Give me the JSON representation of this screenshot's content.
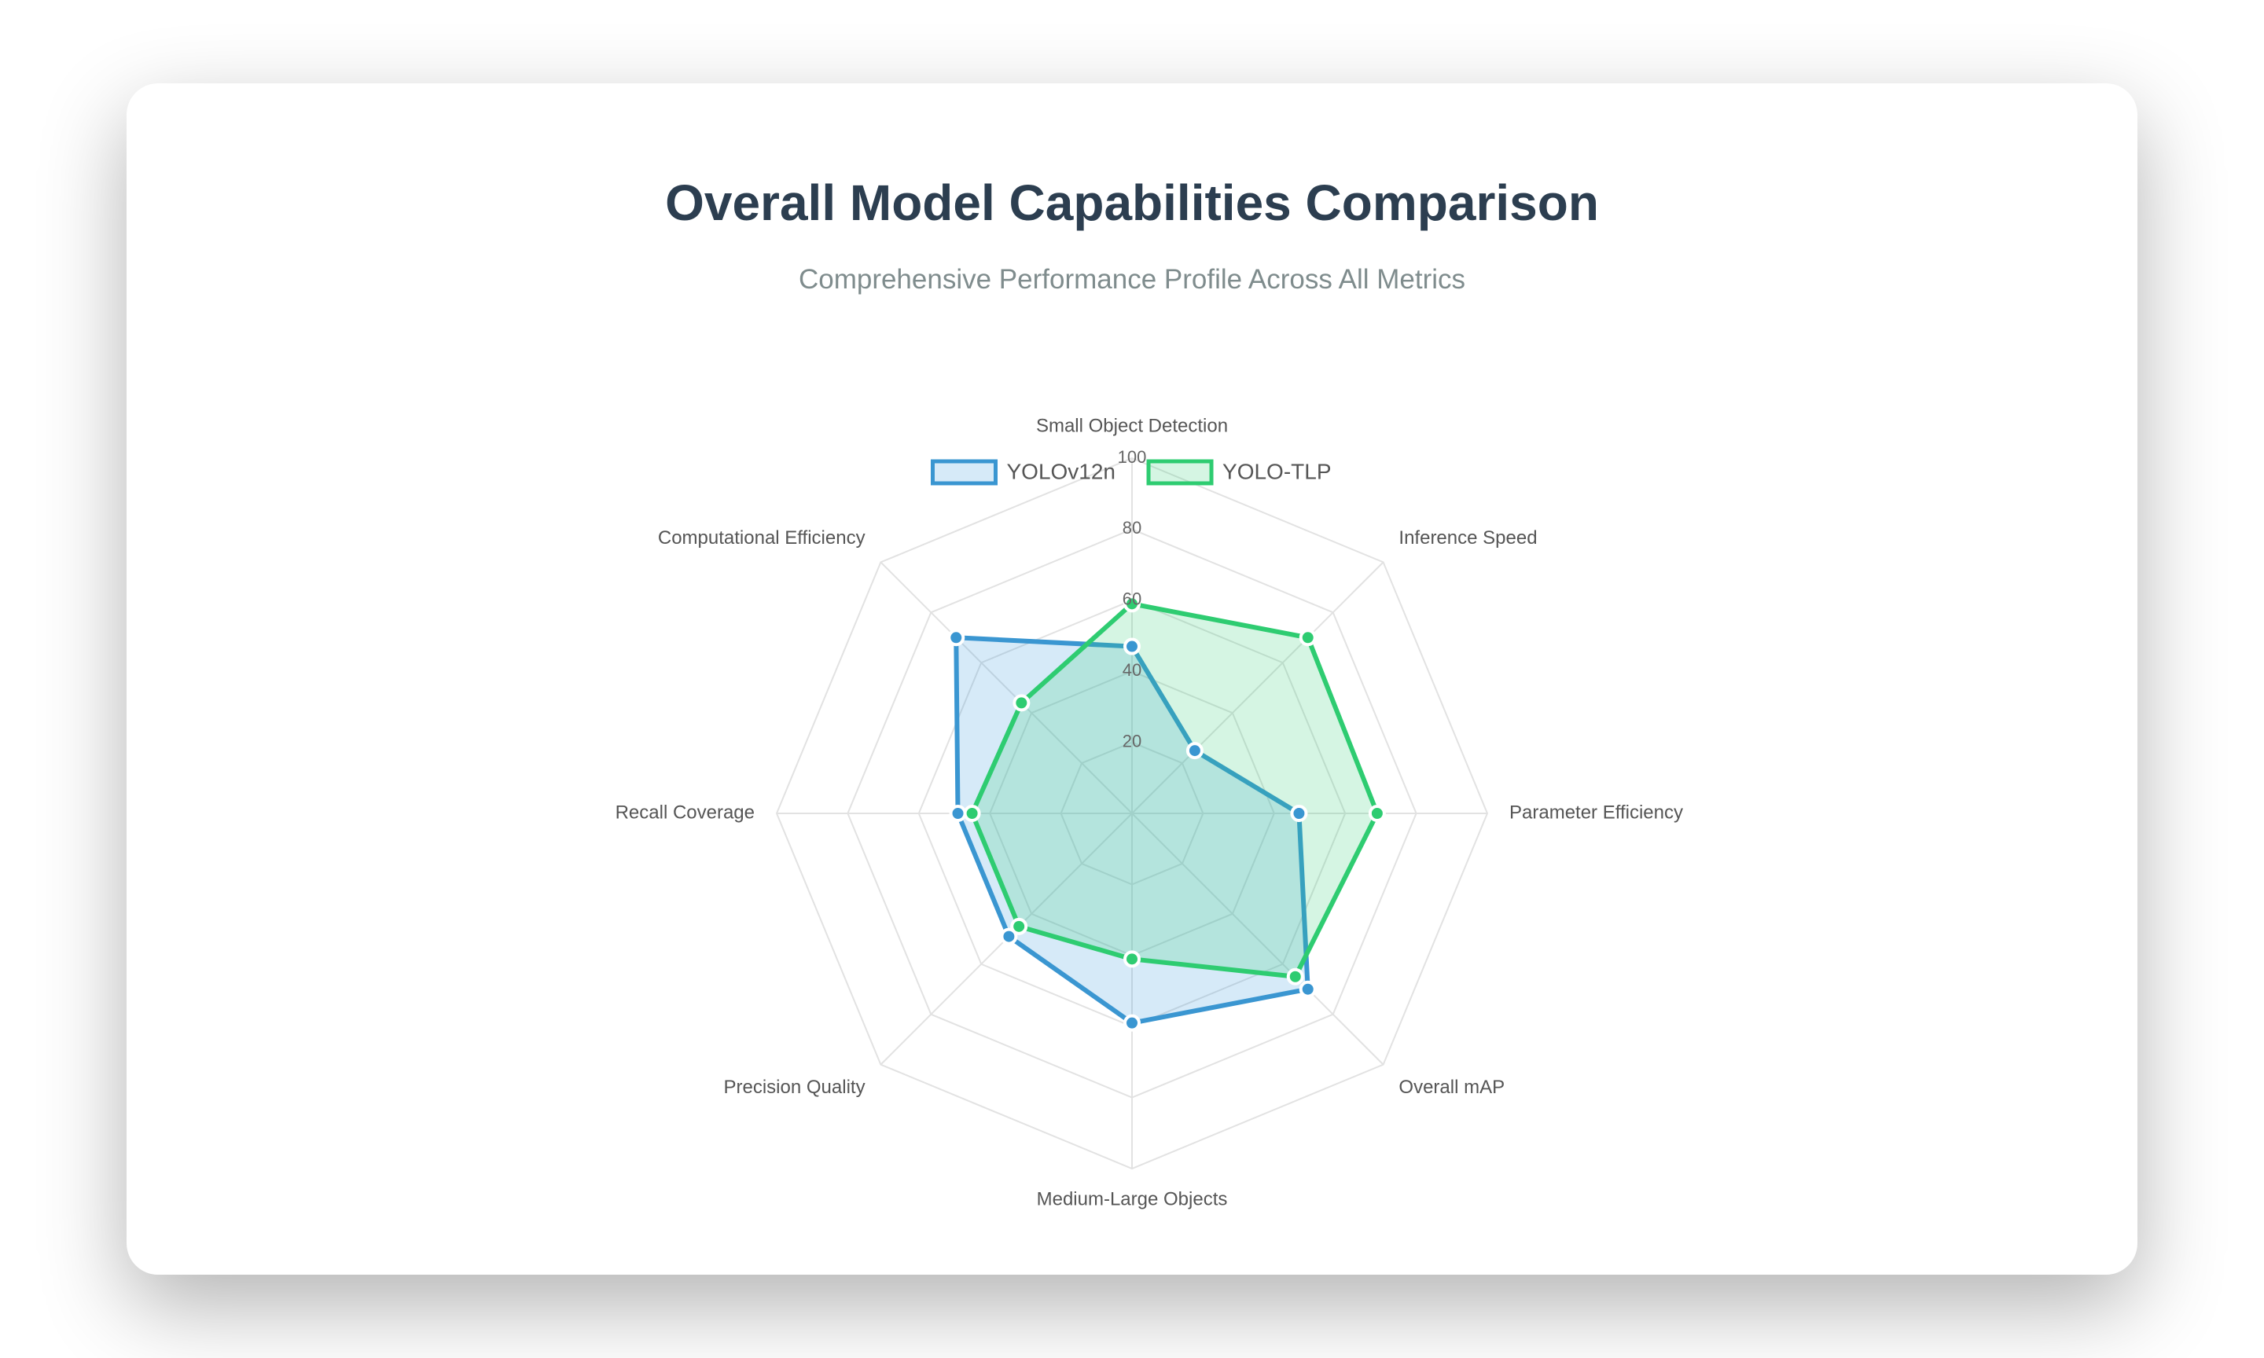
{
  "page": {
    "title": "Overall Model Capabilities Comparison",
    "subtitle": "Comprehensive Performance Profile Across All Metrics"
  },
  "chart_data": {
    "type": "radar",
    "title": "Overall Model Capabilities Comparison",
    "subtitle": "Comprehensive Performance Profile Across All Metrics",
    "categories": [
      "Small Object Detection",
      "Inference Speed",
      "Parameter Efficiency",
      "Overall mAP",
      "Medium-Large Objects",
      "Precision Quality",
      "Recall Coverage",
      "Computational Efficiency"
    ],
    "ticks": [
      "20",
      "40",
      "60",
      "80",
      "100"
    ],
    "rmax": 100,
    "legend_position": "top",
    "grid": true,
    "series": [
      {
        "name": "YOLOv12n",
        "values": [
          47,
          25,
          47,
          70,
          59,
          49,
          49,
          70
        ],
        "color": "#3a96d1",
        "fill": "rgba(52,152,219,0.20)"
      },
      {
        "name": "YOLO-TLP",
        "values": [
          59,
          70,
          69,
          65,
          41,
          45,
          45,
          44
        ],
        "color": "#2ecc71",
        "fill": "rgba(46,204,113,0.20)"
      }
    ]
  }
}
